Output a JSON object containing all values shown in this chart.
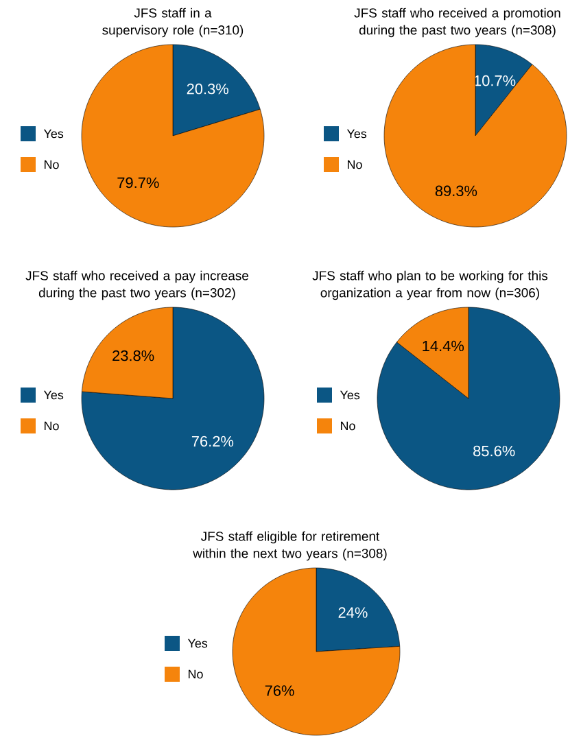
{
  "chart_data": [
    {
      "type": "pie",
      "title": "JFS staff in a supervisory role (n=310)",
      "categories": [
        "Yes",
        "No"
      ],
      "values": [
        20.3,
        79.7
      ],
      "colors": [
        "#0b5684",
        "#f5840c"
      ],
      "value_labels": [
        "20.3%",
        "79.7%"
      ],
      "legend": "left"
    },
    {
      "type": "pie",
      "title": "JFS staff who received a promotion during the past two years (n=308)",
      "categories": [
        "Yes",
        "No"
      ],
      "values": [
        10.7,
        89.3
      ],
      "colors": [
        "#0b5684",
        "#f5840c"
      ],
      "value_labels": [
        "10.7%",
        "89.3%"
      ],
      "legend": "left"
    },
    {
      "type": "pie",
      "title": "JFS staff who received a pay increase during the past two years (n=302)",
      "categories": [
        "Yes",
        "No"
      ],
      "values": [
        76.2,
        23.8
      ],
      "colors": [
        "#0b5684",
        "#f5840c"
      ],
      "value_labels": [
        "76.2%",
        "23.8%"
      ],
      "legend": "left"
    },
    {
      "type": "pie",
      "title": "JFS staff who plan to be working for this organization a year from now (n=306)",
      "categories": [
        "Yes",
        "No"
      ],
      "values": [
        85.6,
        14.4
      ],
      "colors": [
        "#0b5684",
        "#f5840c"
      ],
      "value_labels": [
        "85.6%",
        "14.4%"
      ],
      "legend": "left"
    },
    {
      "type": "pie",
      "title": "JFS staff eligible for retirement within the next two years (n=308)",
      "categories": [
        "Yes",
        "No"
      ],
      "values": [
        24,
        76
      ],
      "colors": [
        "#0b5684",
        "#f5840c"
      ],
      "value_labels": [
        "24%",
        "76%"
      ],
      "legend": "left"
    }
  ]
}
